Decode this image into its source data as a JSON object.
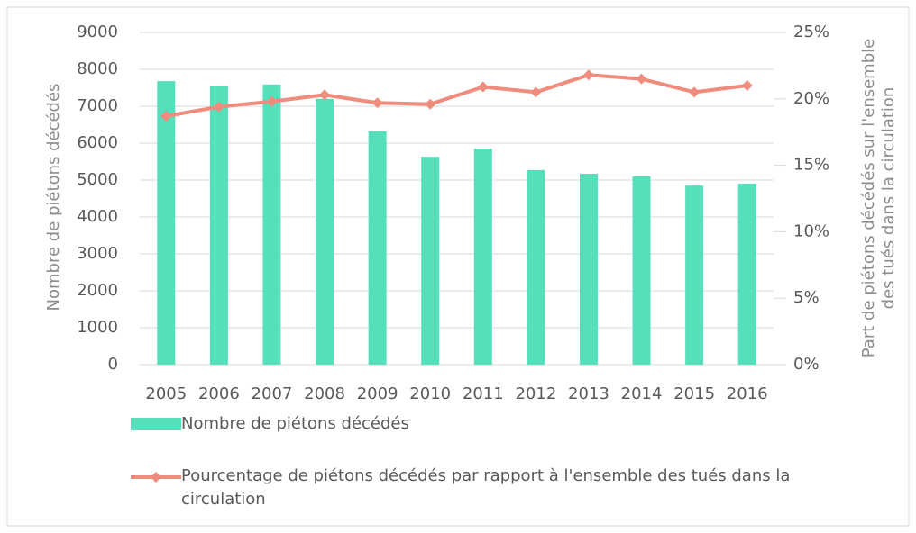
{
  "chart_data": {
    "type": "bar_line",
    "categories": [
      "2005",
      "2006",
      "2007",
      "2008",
      "2009",
      "2010",
      "2011",
      "2012",
      "2013",
      "2014",
      "2015",
      "2016"
    ],
    "ylabel": "Nombre de piétons décédés",
    "y2label": "Part de piétons décédés sur l'ensemble des tués dans la circulation",
    "ylim": [
      0,
      9000
    ],
    "yticks": [
      0,
      1000,
      2000,
      3000,
      4000,
      5000,
      6000,
      7000,
      8000,
      9000
    ],
    "y2lim": [
      0,
      25
    ],
    "y2ticks": [
      {
        "value": 0,
        "label": "0%"
      },
      {
        "value": 5,
        "label": "5%"
      },
      {
        "value": 10,
        "label": "10%"
      },
      {
        "value": 15,
        "label": "15%"
      },
      {
        "value": 20,
        "label": "20%"
      },
      {
        "value": 25,
        "label": "25%"
      }
    ],
    "grid": true,
    "legend": "bottom",
    "series": [
      {
        "name": "Nombre de piétons décédés",
        "type": "bar",
        "color": "#55dfbb",
        "values": [
          7680,
          7540,
          7590,
          7200,
          6320,
          5630,
          5850,
          5270,
          5170,
          5100,
          4850,
          4900
        ]
      },
      {
        "name": "Pourcentage de piétons décédés par rapport à l'ensemble des tués dans la circulation",
        "type": "line",
        "axis": "y2",
        "color": "#f08c7e",
        "values": [
          18.7,
          19.4,
          19.8,
          20.3,
          19.7,
          19.6,
          20.9,
          20.5,
          21.8,
          21.5,
          20.5,
          21.0
        ]
      }
    ]
  }
}
